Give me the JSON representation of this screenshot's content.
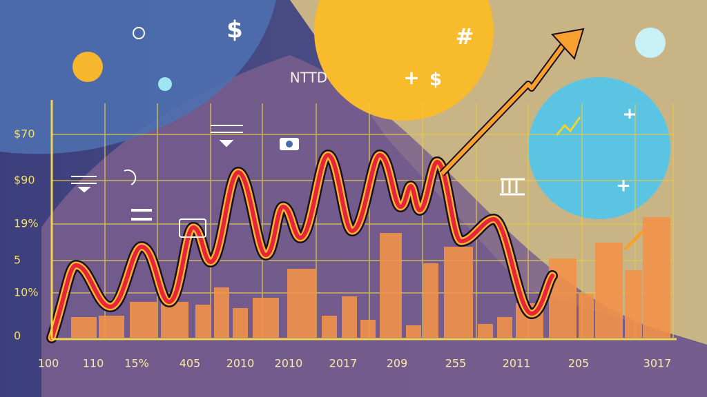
{
  "header": {
    "title": "NTTD"
  },
  "y_labels": [
    "$70",
    "$90",
    "19%",
    "5",
    "10%",
    "0"
  ],
  "x_labels": [
    "100",
    "110",
    "15%",
    "405",
    "2010",
    "2010",
    "2017",
    "209",
    "255",
    "2011",
    "205",
    "3017"
  ],
  "symbols": [
    "$",
    "#",
    "+",
    "$",
    "+"
  ]
}
